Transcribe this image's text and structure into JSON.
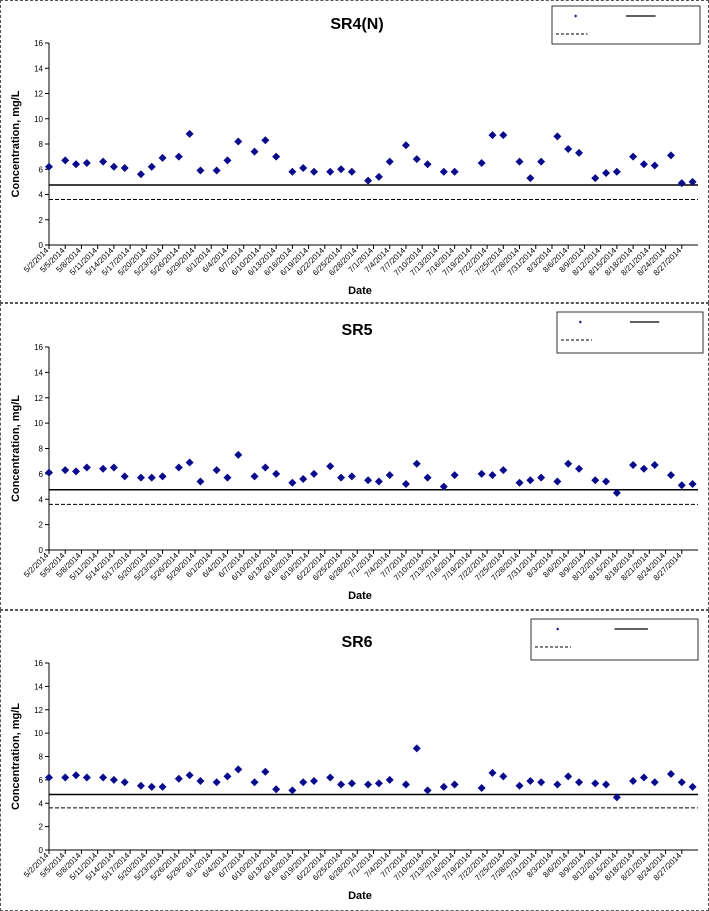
{
  "chart_data": [
    {
      "type": "scatter",
      "title": "SR4(N)",
      "xlabel": "Date",
      "ylabel": "Concentration, mg/L",
      "ylim": [
        0,
        16
      ],
      "yticks": [
        0,
        2,
        4,
        6,
        8,
        10,
        12,
        14,
        16
      ],
      "x_tick_labels": [
        "5/2/2014",
        "5/5/2014",
        "5/8/2014",
        "5/11/2014",
        "5/14/2014",
        "5/17/2014",
        "5/20/2014",
        "5/23/2014",
        "5/26/2014",
        "5/29/2014",
        "6/1/2014",
        "6/4/2014",
        "6/7/2014",
        "6/10/2014",
        "6/13/2014",
        "6/16/2014",
        "6/19/2014",
        "6/22/2014",
        "6/25/2014",
        "6/28/2014",
        "7/1/2014",
        "7/4/2014",
        "7/7/2014",
        "7/10/2014",
        "7/13/2014",
        "7/16/2014",
        "7/19/2014",
        "7/22/2014",
        "7/25/2014",
        "7/28/2014",
        "7/31/2014",
        "8/3/2014",
        "8/6/2014",
        "8/9/2014",
        "8/12/2014",
        "8/15/2014",
        "8/18/2014",
        "8/21/2014",
        "8/24/2014",
        "8/27/2014"
      ],
      "series": [
        {
          "marker": "diamond",
          "color": "#0a0a8c",
          "values": [
            {
              "x": "5/2/2014",
              "y": 6.2
            },
            {
              "x": "5/5/2014",
              "y": 6.7
            },
            {
              "x": "5/7/2014",
              "y": 6.4
            },
            {
              "x": "5/9/2014",
              "y": 6.5
            },
            {
              "x": "5/12/2014",
              "y": 6.6
            },
            {
              "x": "5/14/2014",
              "y": 6.2
            },
            {
              "x": "5/16/2014",
              "y": 6.1
            },
            {
              "x": "5/19/2014",
              "y": 5.6
            },
            {
              "x": "5/21/2014",
              "y": 6.2
            },
            {
              "x": "5/23/2014",
              "y": 6.9
            },
            {
              "x": "5/26/2014",
              "y": 7.0
            },
            {
              "x": "5/28/2014",
              "y": 8.8
            },
            {
              "x": "5/30/2014",
              "y": 5.9
            },
            {
              "x": "6/2/2014",
              "y": 5.9
            },
            {
              "x": "6/4/2014",
              "y": 6.7
            },
            {
              "x": "6/6/2014",
              "y": 8.2
            },
            {
              "x": "6/9/2014",
              "y": 7.4
            },
            {
              "x": "6/11/2014",
              "y": 8.3
            },
            {
              "x": "6/13/2014",
              "y": 7.0
            },
            {
              "x": "6/16/2014",
              "y": 5.8
            },
            {
              "x": "6/18/2014",
              "y": 6.1
            },
            {
              "x": "6/20/2014",
              "y": 5.8
            },
            {
              "x": "6/23/2014",
              "y": 5.8
            },
            {
              "x": "6/25/2014",
              "y": 6.0
            },
            {
              "x": "6/27/2014",
              "y": 5.8
            },
            {
              "x": "6/30/2014",
              "y": 5.1
            },
            {
              "x": "7/2/2014",
              "y": 5.4
            },
            {
              "x": "7/4/2014",
              "y": 6.6
            },
            {
              "x": "7/7/2014",
              "y": 7.9
            },
            {
              "x": "7/9/2014",
              "y": 6.8
            },
            {
              "x": "7/11/2014",
              "y": 6.4
            },
            {
              "x": "7/14/2014",
              "y": 5.8
            },
            {
              "x": "7/16/2014",
              "y": 5.8
            },
            {
              "x": "7/21/2014",
              "y": 6.5
            },
            {
              "x": "7/23/2014",
              "y": 8.7
            },
            {
              "x": "7/25/2014",
              "y": 8.7
            },
            {
              "x": "7/28/2014",
              "y": 6.6
            },
            {
              "x": "7/30/2014",
              "y": 5.3
            },
            {
              "x": "8/1/2014",
              "y": 6.6
            },
            {
              "x": "8/4/2014",
              "y": 8.6
            },
            {
              "x": "8/6/2014",
              "y": 7.6
            },
            {
              "x": "8/8/2014",
              "y": 7.3
            },
            {
              "x": "8/11/2014",
              "y": 5.3
            },
            {
              "x": "8/13/2014",
              "y": 5.7
            },
            {
              "x": "8/15/2014",
              "y": 5.8
            },
            {
              "x": "8/18/2014",
              "y": 7.0
            },
            {
              "x": "8/20/2014",
              "y": 6.4
            },
            {
              "x": "8/22/2014",
              "y": 6.3
            },
            {
              "x": "8/25/2014",
              "y": 7.1
            },
            {
              "x": "8/27/2014",
              "y": 4.9
            },
            {
              "x": "8/29/2014",
              "y": 5.0
            }
          ]
        }
      ],
      "reference_lines": [
        {
          "style": "solid",
          "y": 4.75
        },
        {
          "style": "dashed",
          "y": 3.6
        }
      ],
      "legend": {
        "placement": "top-right",
        "entries": [
          "",
          "",
          ""
        ]
      }
    },
    {
      "type": "scatter",
      "title": "SR5",
      "xlabel": "Date",
      "ylabel": "Concentration, mg/L",
      "ylim": [
        0,
        16
      ],
      "yticks": [
        0,
        2,
        4,
        6,
        8,
        10,
        12,
        14,
        16
      ],
      "x_tick_labels": [
        "5/2/2014",
        "5/5/2014",
        "5/8/2014",
        "5/11/2014",
        "5/14/2014",
        "5/17/2014",
        "5/20/2014",
        "5/23/2014",
        "5/26/2014",
        "5/29/2014",
        "6/1/2014",
        "6/4/2014",
        "6/7/2014",
        "6/10/2014",
        "6/13/2014",
        "6/16/2014",
        "6/19/2014",
        "6/22/2014",
        "6/25/2014",
        "6/28/2014",
        "7/1/2014",
        "7/4/2014",
        "7/7/2014",
        "7/10/2014",
        "7/13/2014",
        "7/16/2014",
        "7/19/2014",
        "7/22/2014",
        "7/25/2014",
        "7/28/2014",
        "7/31/2014",
        "8/3/2014",
        "8/6/2014",
        "8/9/2014",
        "8/12/2014",
        "8/15/2014",
        "8/18/2014",
        "8/21/2014",
        "8/24/2014",
        "8/27/2014"
      ],
      "series": [
        {
          "marker": "diamond",
          "color": "#0a0a8c",
          "values": [
            {
              "x": "5/2/2014",
              "y": 6.1
            },
            {
              "x": "5/5/2014",
              "y": 6.3
            },
            {
              "x": "5/7/2014",
              "y": 6.2
            },
            {
              "x": "5/9/2014",
              "y": 6.5
            },
            {
              "x": "5/12/2014",
              "y": 6.4
            },
            {
              "x": "5/14/2014",
              "y": 6.5
            },
            {
              "x": "5/16/2014",
              "y": 5.8
            },
            {
              "x": "5/19/2014",
              "y": 5.7
            },
            {
              "x": "5/21/2014",
              "y": 5.7
            },
            {
              "x": "5/23/2014",
              "y": 5.8
            },
            {
              "x": "5/26/2014",
              "y": 6.5
            },
            {
              "x": "5/28/2014",
              "y": 6.9
            },
            {
              "x": "5/30/2014",
              "y": 5.4
            },
            {
              "x": "6/2/2014",
              "y": 6.3
            },
            {
              "x": "6/4/2014",
              "y": 5.7
            },
            {
              "x": "6/6/2014",
              "y": 7.5
            },
            {
              "x": "6/9/2014",
              "y": 5.8
            },
            {
              "x": "6/11/2014",
              "y": 6.5
            },
            {
              "x": "6/13/2014",
              "y": 6.0
            },
            {
              "x": "6/16/2014",
              "y": 5.3
            },
            {
              "x": "6/18/2014",
              "y": 5.6
            },
            {
              "x": "6/20/2014",
              "y": 6.0
            },
            {
              "x": "6/23/2014",
              "y": 6.6
            },
            {
              "x": "6/25/2014",
              "y": 5.7
            },
            {
              "x": "6/27/2014",
              "y": 5.8
            },
            {
              "x": "6/30/2014",
              "y": 5.5
            },
            {
              "x": "7/2/2014",
              "y": 5.4
            },
            {
              "x": "7/4/2014",
              "y": 5.9
            },
            {
              "x": "7/7/2014",
              "y": 5.2
            },
            {
              "x": "7/9/2014",
              "y": 6.8
            },
            {
              "x": "7/11/2014",
              "y": 5.7
            },
            {
              "x": "7/14/2014",
              "y": 5.0
            },
            {
              "x": "7/16/2014",
              "y": 5.9
            },
            {
              "x": "7/21/2014",
              "y": 6.0
            },
            {
              "x": "7/23/2014",
              "y": 5.9
            },
            {
              "x": "7/25/2014",
              "y": 6.3
            },
            {
              "x": "7/28/2014",
              "y": 5.3
            },
            {
              "x": "7/30/2014",
              "y": 5.5
            },
            {
              "x": "8/1/2014",
              "y": 5.7
            },
            {
              "x": "8/4/2014",
              "y": 5.4
            },
            {
              "x": "8/6/2014",
              "y": 6.8
            },
            {
              "x": "8/8/2014",
              "y": 6.4
            },
            {
              "x": "8/11/2014",
              "y": 5.5
            },
            {
              "x": "8/13/2014",
              "y": 5.4
            },
            {
              "x": "8/15/2014",
              "y": 4.5
            },
            {
              "x": "8/18/2014",
              "y": 6.7
            },
            {
              "x": "8/20/2014",
              "y": 6.4
            },
            {
              "x": "8/22/2014",
              "y": 6.7
            },
            {
              "x": "8/25/2014",
              "y": 5.9
            },
            {
              "x": "8/27/2014",
              "y": 5.1
            },
            {
              "x": "8/29/2014",
              "y": 5.2
            }
          ]
        }
      ],
      "reference_lines": [
        {
          "style": "solid",
          "y": 4.75
        },
        {
          "style": "dashed",
          "y": 3.6
        }
      ],
      "legend": {
        "placement": "top-right",
        "entries": [
          "",
          "",
          ""
        ]
      }
    },
    {
      "type": "scatter",
      "title": "SR6",
      "xlabel": "Date",
      "ylabel": "Concentration, mg/L",
      "ylim": [
        0,
        16
      ],
      "yticks": [
        0,
        2,
        4,
        6,
        8,
        10,
        12,
        14,
        16
      ],
      "x_tick_labels": [
        "5/2/2014",
        "5/5/2014",
        "5/8/2014",
        "5/11/2014",
        "5/14/2014",
        "5/17/2014",
        "5/20/2014",
        "5/23/2014",
        "5/26/2014",
        "5/29/2014",
        "6/1/2014",
        "6/4/2014",
        "6/7/2014",
        "6/10/2014",
        "6/13/2014",
        "6/16/2014",
        "6/19/2014",
        "6/22/2014",
        "6/25/2014",
        "6/28/2014",
        "7/1/2014",
        "7/4/2014",
        "7/7/2014",
        "7/10/2014",
        "7/13/2014",
        "7/16/2014",
        "7/19/2014",
        "7/22/2014",
        "7/25/2014",
        "7/28/2014",
        "7/31/2014",
        "8/3/2014",
        "8/6/2014",
        "8/9/2014",
        "8/12/2014",
        "8/15/2014",
        "8/18/2014",
        "8/21/2014",
        "8/24/2014",
        "8/27/2014"
      ],
      "series": [
        {
          "marker": "diamond",
          "color": "#0a0a8c",
          "values": [
            {
              "x": "5/2/2014",
              "y": 6.2
            },
            {
              "x": "5/5/2014",
              "y": 6.2
            },
            {
              "x": "5/7/2014",
              "y": 6.4
            },
            {
              "x": "5/9/2014",
              "y": 6.2
            },
            {
              "x": "5/12/2014",
              "y": 6.2
            },
            {
              "x": "5/14/2014",
              "y": 6.0
            },
            {
              "x": "5/16/2014",
              "y": 5.8
            },
            {
              "x": "5/19/2014",
              "y": 5.5
            },
            {
              "x": "5/21/2014",
              "y": 5.4
            },
            {
              "x": "5/23/2014",
              "y": 5.4
            },
            {
              "x": "5/26/2014",
              "y": 6.1
            },
            {
              "x": "5/28/2014",
              "y": 6.4
            },
            {
              "x": "5/30/2014",
              "y": 5.9
            },
            {
              "x": "6/2/2014",
              "y": 5.8
            },
            {
              "x": "6/4/2014",
              "y": 6.3
            },
            {
              "x": "6/6/2014",
              "y": 6.9
            },
            {
              "x": "6/9/2014",
              "y": 5.8
            },
            {
              "x": "6/11/2014",
              "y": 6.7
            },
            {
              "x": "6/13/2014",
              "y": 5.2
            },
            {
              "x": "6/16/2014",
              "y": 5.1
            },
            {
              "x": "6/18/2014",
              "y": 5.8
            },
            {
              "x": "6/20/2014",
              "y": 5.9
            },
            {
              "x": "6/23/2014",
              "y": 6.2
            },
            {
              "x": "6/25/2014",
              "y": 5.6
            },
            {
              "x": "6/27/2014",
              "y": 5.7
            },
            {
              "x": "6/30/2014",
              "y": 5.6
            },
            {
              "x": "7/2/2014",
              "y": 5.7
            },
            {
              "x": "7/4/2014",
              "y": 6.0
            },
            {
              "x": "7/7/2014",
              "y": 5.6
            },
            {
              "x": "7/9/2014",
              "y": 8.7
            },
            {
              "x": "7/11/2014",
              "y": 5.1
            },
            {
              "x": "7/14/2014",
              "y": 5.4
            },
            {
              "x": "7/16/2014",
              "y": 5.6
            },
            {
              "x": "7/21/2014",
              "y": 5.3
            },
            {
              "x": "7/23/2014",
              "y": 6.6
            },
            {
              "x": "7/25/2014",
              "y": 6.3
            },
            {
              "x": "7/28/2014",
              "y": 5.5
            },
            {
              "x": "7/30/2014",
              "y": 5.9
            },
            {
              "x": "8/1/2014",
              "y": 5.8
            },
            {
              "x": "8/4/2014",
              "y": 5.6
            },
            {
              "x": "8/6/2014",
              "y": 6.3
            },
            {
              "x": "8/8/2014",
              "y": 5.8
            },
            {
              "x": "8/11/2014",
              "y": 5.7
            },
            {
              "x": "8/13/2014",
              "y": 5.6
            },
            {
              "x": "8/15/2014",
              "y": 4.5
            },
            {
              "x": "8/18/2014",
              "y": 5.9
            },
            {
              "x": "8/20/2014",
              "y": 6.2
            },
            {
              "x": "8/22/2014",
              "y": 5.8
            },
            {
              "x": "8/25/2014",
              "y": 6.5
            },
            {
              "x": "8/27/2014",
              "y": 5.8
            },
            {
              "x": "8/29/2014",
              "y": 5.4
            }
          ]
        }
      ],
      "reference_lines": [
        {
          "style": "solid",
          "y": 4.75
        },
        {
          "style": "dashed",
          "y": 3.6
        }
      ],
      "legend": {
        "placement": "top-right",
        "entries": [
          "",
          "",
          ""
        ]
      }
    }
  ]
}
